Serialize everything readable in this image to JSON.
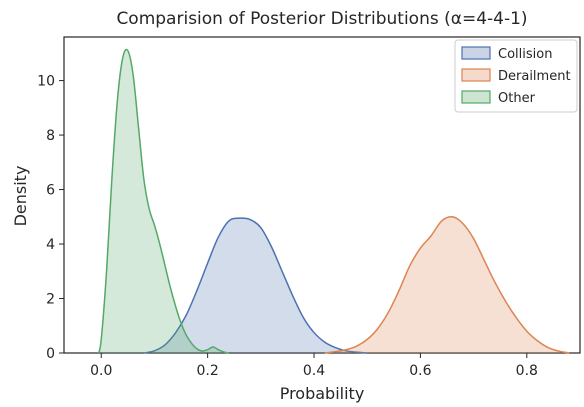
{
  "chart_data": {
    "type": "area",
    "title": "Comparision of Posterior Distributions (α=4-4-1)",
    "xlabel": "Probability",
    "ylabel": "Density",
    "xlim": [
      -0.07,
      0.9
    ],
    "ylim": [
      0,
      11.6
    ],
    "xticks": [
      0.0,
      0.2,
      0.4,
      0.6,
      0.8
    ],
    "xtick_labels": [
      "0.0",
      "0.2",
      "0.4",
      "0.6",
      "0.8"
    ],
    "yticks": [
      0,
      2,
      4,
      6,
      8,
      10
    ],
    "ytick_labels": [
      "0",
      "2",
      "4",
      "6",
      "8",
      "10"
    ],
    "grid": false,
    "legend": {
      "placement": "top-right"
    },
    "series": [
      {
        "name": "Collision",
        "color": "#4c72b0",
        "x": [
          0.08,
          0.1,
          0.12,
          0.14,
          0.16,
          0.18,
          0.2,
          0.22,
          0.24,
          0.26,
          0.28,
          0.3,
          0.32,
          0.34,
          0.36,
          0.38,
          0.4,
          0.42,
          0.44,
          0.46,
          0.48,
          0.5
        ],
        "y": [
          0.0,
          0.08,
          0.3,
          0.75,
          1.4,
          2.3,
          3.3,
          4.25,
          4.85,
          4.95,
          4.9,
          4.6,
          3.9,
          3.0,
          2.1,
          1.3,
          0.75,
          0.4,
          0.2,
          0.08,
          0.03,
          0.0
        ]
      },
      {
        "name": "Derailment",
        "color": "#dd8452",
        "x": [
          0.42,
          0.44,
          0.46,
          0.48,
          0.5,
          0.52,
          0.54,
          0.56,
          0.58,
          0.6,
          0.62,
          0.64,
          0.66,
          0.68,
          0.7,
          0.72,
          0.74,
          0.76,
          0.78,
          0.8,
          0.82,
          0.84,
          0.86,
          0.88
        ],
        "y": [
          0.0,
          0.05,
          0.12,
          0.25,
          0.5,
          0.9,
          1.5,
          2.3,
          3.2,
          3.85,
          4.3,
          4.85,
          5.0,
          4.75,
          4.2,
          3.4,
          2.6,
          1.9,
          1.3,
          0.8,
          0.45,
          0.2,
          0.07,
          0.0
        ]
      },
      {
        "name": "Other",
        "color": "#55a868",
        "x": [
          -0.005,
          0.0,
          0.01,
          0.02,
          0.03,
          0.04,
          0.05,
          0.06,
          0.07,
          0.08,
          0.09,
          0.1,
          0.11,
          0.12,
          0.13,
          0.14,
          0.15,
          0.16,
          0.17,
          0.18,
          0.19,
          0.2,
          0.21,
          0.22,
          0.23,
          0.24
        ],
        "y": [
          0.0,
          0.5,
          3.0,
          6.4,
          9.2,
          10.8,
          11.1,
          10.2,
          8.3,
          6.4,
          5.3,
          4.7,
          4.0,
          3.2,
          2.4,
          1.7,
          1.1,
          0.65,
          0.35,
          0.15,
          0.07,
          0.12,
          0.22,
          0.12,
          0.04,
          0.0
        ]
      }
    ]
  }
}
